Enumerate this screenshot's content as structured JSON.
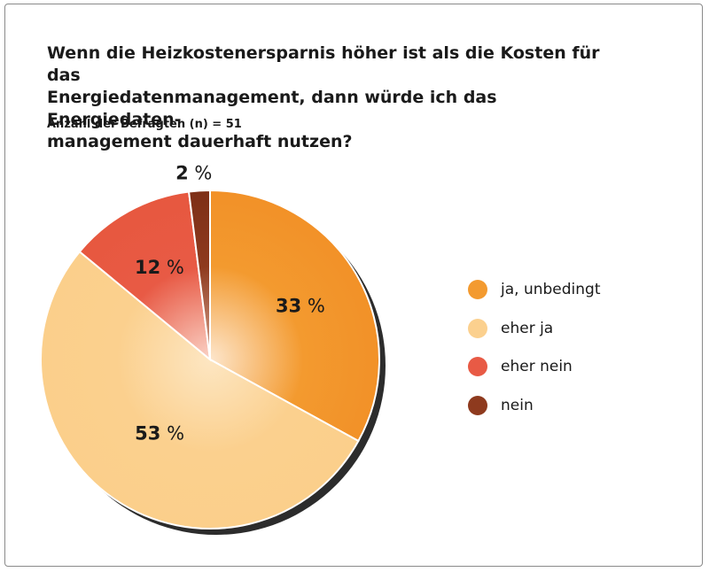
{
  "title_lines": [
    "Wenn die Heizkostenersparnis höher ist als die Kosten für das",
    "Energiedatenmanagement, dann würde ich das Energiedaten-",
    "management dauerhaft nutzen?"
  ],
  "subtitle": "Anzahl der Befragten (n) = 51",
  "colors": {
    "ja_unbedingt": "#f39a2f",
    "eher_ja": "#fbd08e",
    "eher_nein": "#e85a45",
    "nein": "#8e3a1e"
  },
  "chart_data": {
    "type": "pie",
    "title": "Wenn die Heizkostenersparnis höher ist als die Kosten für das Energiedatenmanagement, dann würde ich das Energiedatenmanagement dauerhaft nutzen?",
    "slices": [
      {
        "label": "ja, unbedingt",
        "value": 33,
        "display": "33 %",
        "color": "#f39a2f"
      },
      {
        "label": "eher ja",
        "value": 53,
        "display": "53 %",
        "color": "#fbd08e"
      },
      {
        "label": "eher nein",
        "value": 12,
        "display": "12 %",
        "color": "#e85a45"
      },
      {
        "label": "nein",
        "value": 2,
        "display": "2 %",
        "color": "#8e3a1e"
      }
    ],
    "legend_position": "right"
  }
}
